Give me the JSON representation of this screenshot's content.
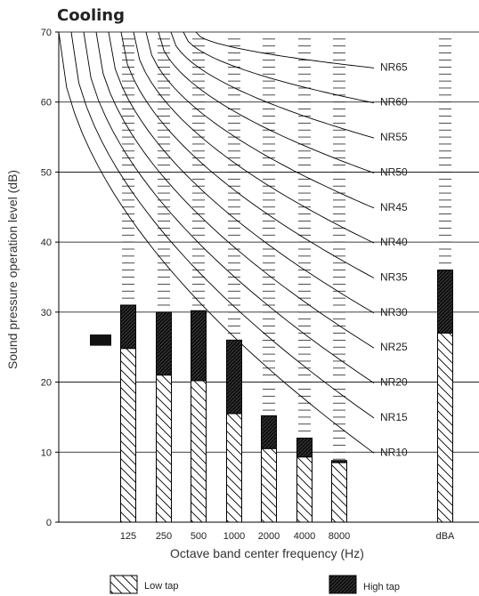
{
  "chart_data": {
    "type": "bar",
    "title": "Cooling",
    "xlabel": "Octave band center frequency (Hz)",
    "ylabel": "Sound pressure operation level (dB)",
    "ylim": [
      0,
      70
    ],
    "yticks": [
      0,
      10,
      20,
      30,
      40,
      50,
      60,
      70
    ],
    "categories": [
      "125",
      "250",
      "500",
      "1000",
      "2000",
      "4000",
      "8000",
      "dBA"
    ],
    "series": [
      {
        "name": "Low tap",
        "pattern": "hatch-light",
        "values": [
          24.8,
          21,
          20.2,
          15.5,
          10.5,
          9.3,
          8.5,
          27
        ]
      },
      {
        "name": "High tap",
        "pattern": "hatch-dark",
        "values": [
          31,
          30,
          30.2,
          26,
          15.2,
          12,
          8.8,
          36
        ]
      }
    ],
    "nr_curves": [
      {
        "label": "NR10",
        "end_value": 10
      },
      {
        "label": "NR15",
        "end_value": 15
      },
      {
        "label": "NR20",
        "end_value": 20
      },
      {
        "label": "NR25",
        "end_value": 25
      },
      {
        "label": "NR30",
        "end_value": 30
      },
      {
        "label": "NR35",
        "end_value": 35
      },
      {
        "label": "NR40",
        "end_value": 40
      },
      {
        "label": "NR45",
        "end_value": 45
      },
      {
        "label": "NR50",
        "end_value": 50
      },
      {
        "label": "NR55",
        "end_value": 55
      },
      {
        "label": "NR60",
        "end_value": 60
      },
      {
        "label": "NR65",
        "end_value": 65
      }
    ],
    "marker": {
      "value_low": 25.2,
      "value_high": 26.8
    },
    "grid": true,
    "legend_placement": "bottom",
    "colors": {
      "bar_edge": "#000000",
      "fill_dark": "#111111",
      "grid": "#000000",
      "curve": "#000000"
    }
  }
}
